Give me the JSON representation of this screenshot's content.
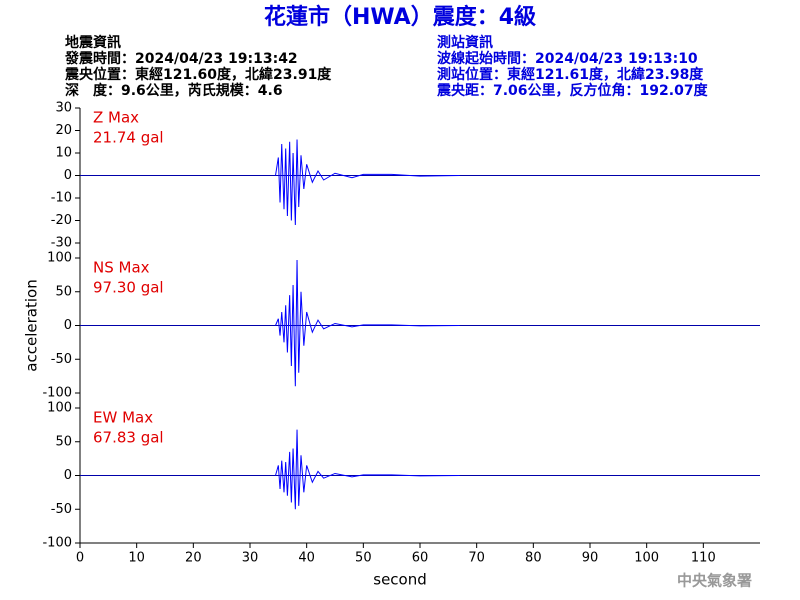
{
  "header": {
    "title": "花蓮市（HWA）震度：4級",
    "left": [
      "地震資訊",
      "發震時間：2024/04/23 19:13:42",
      "震央位置：東經121.60度，北緯23.91度",
      "深　度：9.6公里，芮氏規模：4.6"
    ],
    "right": [
      "測站資訊",
      "波線起始時間：2024/04/23 19:13:10",
      "測站位置：東經121.61度，北緯23.98度",
      "震央距：7.06公里，反方位角：192.07度"
    ],
    "footer": "中央氣象署"
  },
  "chart_data": [
    {
      "type": "line",
      "label": "Z Max",
      "max_label": "21.74 gal",
      "color": "#0000ff",
      "x": [
        34.5,
        35,
        35.3,
        35.6,
        36,
        36.3,
        36.6,
        37,
        37.3,
        37.6,
        38,
        38.3,
        38.6,
        39,
        39.5,
        40,
        41,
        42,
        43,
        45,
        48,
        50,
        55,
        60,
        67
      ],
      "values": [
        0,
        8,
        -12,
        14,
        -15,
        12,
        -18,
        15,
        -20,
        10,
        -22,
        16,
        -14,
        9,
        -6,
        5,
        -3,
        2,
        -2,
        1,
        -1,
        0.5,
        0.5,
        -0.3,
        0
      ],
      "xlim": [
        0,
        120
      ],
      "ylim": [
        -30,
        30
      ],
      "yticks": [
        -30,
        -20,
        -10,
        0,
        10,
        20,
        30
      ]
    },
    {
      "type": "line",
      "label": "NS Max",
      "max_label": "97.30 gal",
      "color": "#0000ff",
      "ylabel": "acceleration",
      "x": [
        34.5,
        35,
        35.3,
        35.6,
        36,
        36.3,
        36.6,
        37,
        37.3,
        37.6,
        38,
        38.3,
        38.6,
        39,
        39.5,
        40,
        41,
        42,
        43,
        45,
        48,
        50,
        55,
        60,
        67
      ],
      "values": [
        0,
        10,
        -15,
        20,
        -25,
        30,
        -40,
        45,
        -60,
        60,
        -90,
        97,
        -70,
        50,
        -30,
        20,
        -10,
        8,
        -5,
        3,
        -2,
        1,
        1,
        -0.5,
        0
      ],
      "xlim": [
        0,
        120
      ],
      "ylim": [
        -100,
        100
      ],
      "yticks": [
        -100,
        -50,
        0,
        50,
        100
      ]
    },
    {
      "type": "line",
      "label": "EW Max",
      "max_label": "67.83 gal",
      "color": "#0000ff",
      "xlabel": "second",
      "x": [
        34.5,
        35,
        35.3,
        35.6,
        36,
        36.3,
        36.6,
        37,
        37.3,
        37.6,
        38,
        38.3,
        38.6,
        39,
        39.5,
        40,
        41,
        42,
        43,
        45,
        48,
        50,
        55,
        60,
        67
      ],
      "values": [
        0,
        15,
        -20,
        22,
        -25,
        20,
        -30,
        35,
        -40,
        40,
        -50,
        68,
        -45,
        30,
        -25,
        15,
        -10,
        6,
        -4,
        3,
        -2,
        1,
        1,
        -0.5,
        0
      ],
      "xlim": [
        0,
        120
      ],
      "ylim": [
        -100,
        100
      ],
      "yticks": [
        -100,
        -50,
        0,
        50,
        100
      ],
      "xticks": [
        0,
        10,
        20,
        30,
        40,
        50,
        60,
        70,
        80,
        90,
        100,
        110
      ]
    }
  ]
}
